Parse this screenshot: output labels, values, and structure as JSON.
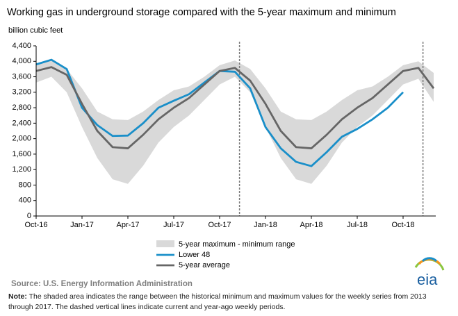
{
  "chart_data": {
    "type": "line",
    "title": "Working gas in underground storage compared with the 5-year maximum and minimum",
    "y_label": "billion cubic feet",
    "categories": [
      "Oct-16",
      null,
      null,
      "Jan-17",
      null,
      null,
      "Apr-17",
      null,
      null,
      "Jul-17",
      null,
      null,
      "Oct-17",
      null,
      null,
      "Jan-18",
      null,
      null,
      "Apr-18",
      null,
      null,
      "Jul-18",
      null,
      null,
      "Oct-18",
      null,
      null
    ],
    "band": {
      "name": "5-year maximum - minimum range",
      "color": "#d9d9d9",
      "max": [
        3900,
        4020,
        3800,
        3300,
        2700,
        2500,
        2480,
        2700,
        3000,
        3250,
        3350,
        3600,
        3900,
        4020,
        3800,
        3300,
        2700,
        2500,
        2480,
        2700,
        3000,
        3250,
        3350,
        3600,
        3900,
        4000,
        3700
      ],
      "min": [
        3450,
        3600,
        3200,
        2300,
        1500,
        950,
        830,
        1300,
        1900,
        2300,
        2600,
        3000,
        3400,
        3600,
        3200,
        2300,
        1500,
        950,
        830,
        1300,
        1900,
        2300,
        2600,
        3000,
        3400,
        3550,
        2950
      ]
    },
    "series": [
      {
        "name": "Lower 48",
        "color": "#1a8fc9",
        "values": [
          3920,
          4040,
          3800,
          2800,
          2350,
          2070,
          2080,
          2400,
          2800,
          2980,
          3150,
          3450,
          3750,
          3730,
          3300,
          2300,
          1750,
          1400,
          1290,
          1650,
          2050,
          2250,
          2500,
          2800,
          3200,
          null,
          null
        ]
      },
      {
        "name": "5-year average",
        "color": "#666666",
        "values": [
          3750,
          3850,
          3650,
          2900,
          2200,
          1780,
          1750,
          2100,
          2500,
          2800,
          3050,
          3400,
          3750,
          3830,
          3500,
          2900,
          2200,
          1780,
          1750,
          2100,
          2500,
          2800,
          3050,
          3400,
          3750,
          3830,
          3300
        ]
      }
    ],
    "vlines": [
      13.3,
      25.3
    ],
    "ylim": [
      0,
      4400
    ],
    "yticks": [
      0,
      400,
      800,
      {
        "value": 1200,
        "label": "1,200"
      },
      {
        "value": 1600,
        "label": "1,600"
      },
      {
        "value": 2000,
        "label": "2,000"
      },
      {
        "value": 2400,
        "label": "2,400"
      },
      {
        "value": 2800,
        "label": "2,800"
      },
      {
        "value": 3200,
        "label": "3,200"
      },
      {
        "value": 3600,
        "label": "3,600"
      },
      {
        "value": 4000,
        "label": "4,000"
      },
      {
        "value": 4400,
        "label": "4,400"
      }
    ],
    "grid": false,
    "source": "Source:  U.S. Energy Information Administration",
    "note_label": "Note:",
    "note": "The shaded area indicates the range between the historical minimum and maximum values for the weekly series from 2013 through 2017. The dashed vertical lines indicate current and year-ago weekly periods.",
    "logo": "eia"
  }
}
